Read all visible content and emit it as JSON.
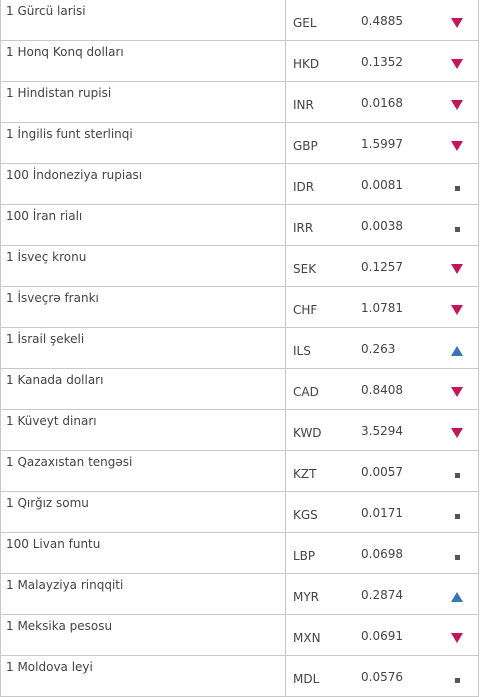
{
  "colors": {
    "down": "#c2185b",
    "up": "#3a73b6",
    "flat": "#555555",
    "border": "#c8c8c8",
    "text": "#444444"
  },
  "rates": [
    {
      "name": "1 Gürcü larisi",
      "code": "GEL",
      "value": "0.4885",
      "trend": "down"
    },
    {
      "name": "1 Honq Konq dolları",
      "code": "HKD",
      "value": "0.1352",
      "trend": "down"
    },
    {
      "name": "1 Hindistan rupisi",
      "code": "INR",
      "value": "0.0168",
      "trend": "down"
    },
    {
      "name": "1 İngilis funt sterlinqi",
      "code": "GBP",
      "value": "1.5997",
      "trend": "down"
    },
    {
      "name": "100 İndoneziya rupiası",
      "code": "IDR",
      "value": "0.0081",
      "trend": "flat"
    },
    {
      "name": "100 İran rialı",
      "code": "IRR",
      "value": "0.0038",
      "trend": "flat"
    },
    {
      "name": "1 İsveç kronu",
      "code": "SEK",
      "value": "0.1257",
      "trend": "down"
    },
    {
      "name": "1 İsveçrə frankı",
      "code": "CHF",
      "value": "1.0781",
      "trend": "down"
    },
    {
      "name": "1 İsrail şekeli",
      "code": "ILS",
      "value": "0.263",
      "trend": "up"
    },
    {
      "name": "1 Kanada dolları",
      "code": "CAD",
      "value": "0.8408",
      "trend": "down"
    },
    {
      "name": "1 Küveyt dinarı",
      "code": "KWD",
      "value": "3.5294",
      "trend": "down"
    },
    {
      "name": "1 Qazaxıstan tengəsi",
      "code": "KZT",
      "value": "0.0057",
      "trend": "flat"
    },
    {
      "name": "1 Qırğız somu",
      "code": "KGS",
      "value": "0.0171",
      "trend": "flat"
    },
    {
      "name": "100 Livan funtu",
      "code": "LBP",
      "value": "0.0698",
      "trend": "flat"
    },
    {
      "name": "1 Malayziya rinqqiti",
      "code": "MYR",
      "value": "0.2874",
      "trend": "up"
    },
    {
      "name": "1 Meksika pesosu",
      "code": "MXN",
      "value": "0.0691",
      "trend": "down"
    },
    {
      "name": "1 Moldova leyi",
      "code": "MDL",
      "value": "0.0576",
      "trend": "flat"
    }
  ]
}
